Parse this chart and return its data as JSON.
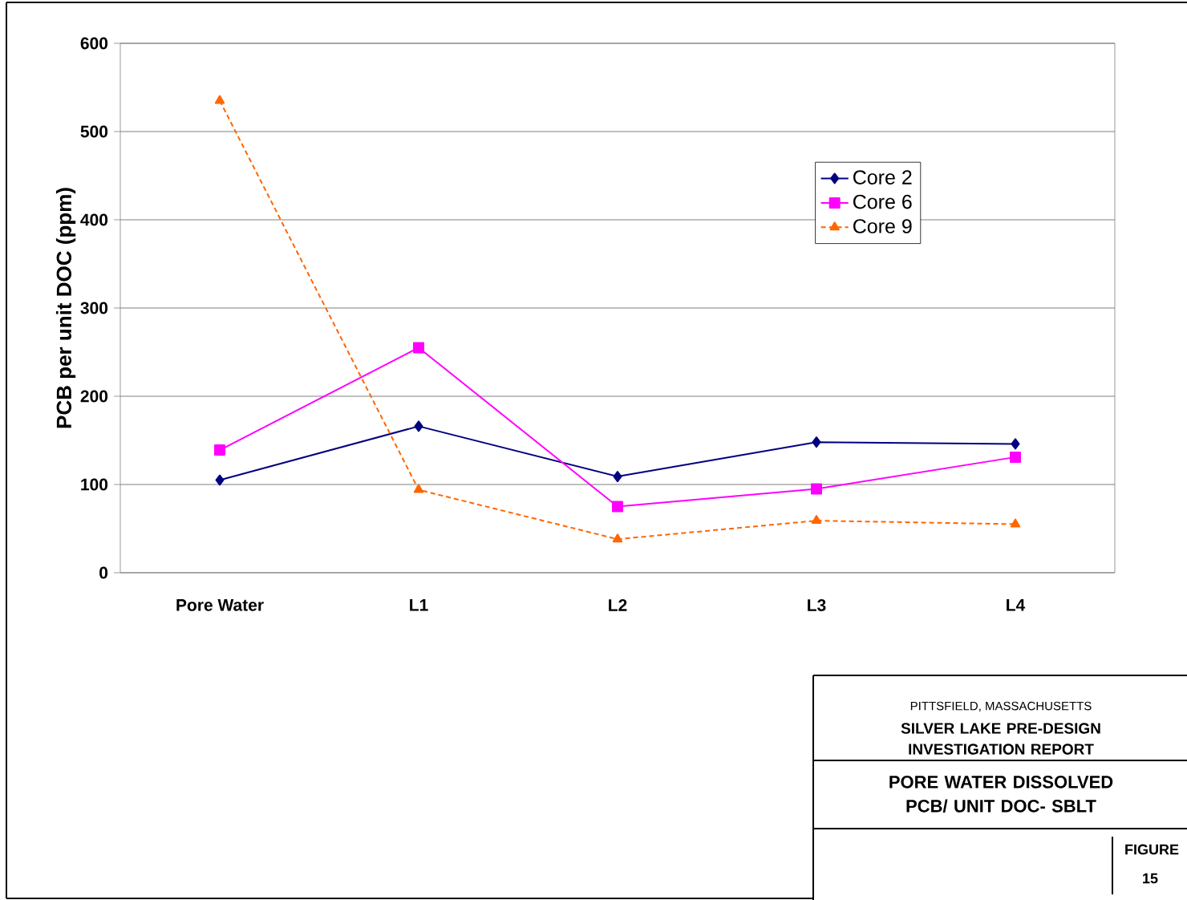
{
  "chart_data": {
    "type": "line",
    "title": "PORE WATER DISSOLVED PCB/ UNIT DOC- SBLT",
    "subtitle": "SILVER LAKE PRE-DESIGN INVESTIGATION REPORT",
    "ylabel": "PCB per unit DOC (ppm)",
    "annotations": [
      "PITTSFIELD, MASSACHUSETTS",
      "FIGURE 15"
    ],
    "categories": [
      "Pore Water",
      "L1",
      "L2",
      "L3",
      "L4"
    ],
    "series": [
      {
        "name": "Core 2",
        "color": "#000080",
        "marker": "diamond",
        "line_style": "solid",
        "values": [
          105,
          166,
          109,
          148,
          146
        ]
      },
      {
        "name": "Core 6",
        "color": "#ff00ff",
        "marker": "square",
        "line_style": "solid",
        "values": [
          139,
          255,
          75,
          95,
          131
        ]
      },
      {
        "name": "Core 9",
        "color": "#ff6600",
        "marker": "triangle",
        "line_style": "dotted",
        "values": [
          535,
          94,
          38,
          59,
          55
        ]
      }
    ],
    "ylim": [
      0,
      600
    ],
    "yticks": [
      0,
      100,
      200,
      300,
      400,
      500,
      600
    ],
    "grid": "y",
    "legend": "top right"
  }
}
